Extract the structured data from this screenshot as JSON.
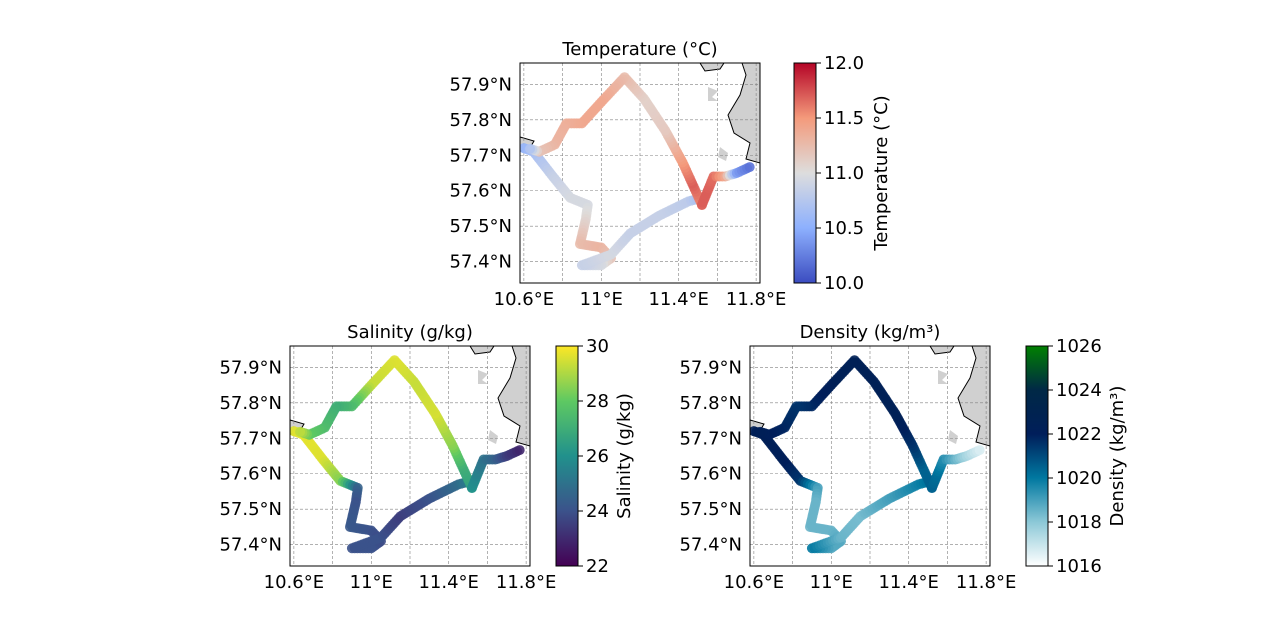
{
  "colors": {
    "land": "#d0d0d0",
    "grid": "#808080",
    "coast": "#000000"
  },
  "chart_data": [
    {
      "type": "scatter",
      "title": "Temperature (°C)",
      "colorbar_label": "Temperature (°C)",
      "colormap": "coolwarm",
      "clim": [
        10.0,
        12.0
      ],
      "colorbar_ticks": [
        "10.0",
        "10.5",
        "11.0",
        "11.5",
        "12.0"
      ],
      "colorbar_tick_values": [
        10.0,
        10.5,
        11.0,
        11.5,
        12.0
      ],
      "xlim": [
        10.58,
        11.82
      ],
      "ylim": [
        57.34,
        57.96
      ],
      "x_ticks": [
        10.6,
        11.0,
        11.4,
        11.8
      ],
      "x_tick_labels": [
        "10.6°E",
        "11°E",
        "11.4°E",
        "11.8°E"
      ],
      "y_ticks": [
        57.4,
        57.5,
        57.6,
        57.7,
        57.8,
        57.9
      ],
      "y_tick_labels": [
        "57.4°N",
        "57.5°N",
        "57.6°N",
        "57.7°N",
        "57.8°N",
        "57.9°N"
      ],
      "grid": true,
      "track": [
        {
          "lon": 10.6,
          "lat": 57.72,
          "v": 10.55
        },
        {
          "lon": 10.65,
          "lat": 57.71,
          "v": 10.65
        },
        {
          "lon": 10.75,
          "lat": 57.64,
          "v": 10.85
        },
        {
          "lon": 10.84,
          "lat": 57.58,
          "v": 10.95
        },
        {
          "lon": 10.93,
          "lat": 57.56,
          "v": 10.95
        },
        {
          "lon": 10.92,
          "lat": 57.52,
          "v": 11.05
        },
        {
          "lon": 10.89,
          "lat": 57.45,
          "v": 11.25
        },
        {
          "lon": 11.0,
          "lat": 57.44,
          "v": 11.3
        },
        {
          "lon": 11.05,
          "lat": 57.41,
          "v": 11.2
        },
        {
          "lon": 11.0,
          "lat": 57.39,
          "v": 10.95
        },
        {
          "lon": 10.9,
          "lat": 57.39,
          "v": 10.85
        },
        {
          "lon": 11.05,
          "lat": 57.42,
          "v": 10.95
        },
        {
          "lon": 11.15,
          "lat": 57.48,
          "v": 10.85
        },
        {
          "lon": 11.3,
          "lat": 57.53,
          "v": 10.85
        },
        {
          "lon": 11.45,
          "lat": 57.57,
          "v": 10.8
        },
        {
          "lon": 11.52,
          "lat": 57.58,
          "v": 10.65
        },
        {
          "lon": 11.52,
          "lat": 57.56,
          "v": 11.55
        },
        {
          "lon": 11.47,
          "lat": 57.62,
          "v": 11.7
        },
        {
          "lon": 11.42,
          "lat": 57.68,
          "v": 11.5
        },
        {
          "lon": 11.33,
          "lat": 57.77,
          "v": 11.15
        },
        {
          "lon": 11.22,
          "lat": 57.86,
          "v": 11.1
        },
        {
          "lon": 11.12,
          "lat": 57.92,
          "v": 11.25
        },
        {
          "lon": 11.0,
          "lat": 57.85,
          "v": 11.4
        },
        {
          "lon": 10.9,
          "lat": 57.79,
          "v": 11.4
        },
        {
          "lon": 10.82,
          "lat": 57.79,
          "v": 11.35
        },
        {
          "lon": 10.76,
          "lat": 57.73,
          "v": 11.3
        },
        {
          "lon": 10.68,
          "lat": 57.71,
          "v": 11.2
        },
        {
          "lon": 10.62,
          "lat": 57.72,
          "v": 10.6
        }
      ],
      "branch": [
        {
          "lon": 11.52,
          "lat": 57.56,
          "v": 11.7
        },
        {
          "lon": 11.55,
          "lat": 57.6,
          "v": 11.7
        },
        {
          "lon": 11.58,
          "lat": 57.64,
          "v": 11.65
        },
        {
          "lon": 11.64,
          "lat": 57.64,
          "v": 11.4
        },
        {
          "lon": 11.7,
          "lat": 57.65,
          "v": 10.4
        },
        {
          "lon": 11.78,
          "lat": 57.67,
          "v": 10.15
        }
      ]
    },
    {
      "type": "scatter",
      "title": "Salinity (g/kg)",
      "colorbar_label": "Salinity (g/kg)",
      "colormap": "viridis",
      "clim": [
        22,
        30
      ],
      "colorbar_ticks": [
        "22",
        "24",
        "26",
        "28",
        "30"
      ],
      "colorbar_tick_values": [
        22,
        24,
        26,
        28,
        30
      ],
      "xlim": [
        10.58,
        11.82
      ],
      "ylim": [
        57.34,
        57.96
      ],
      "x_ticks": [
        10.6,
        11.0,
        11.4,
        11.8
      ],
      "x_tick_labels": [
        "10.6°E",
        "11°E",
        "11.4°E",
        "11.8°E"
      ],
      "y_ticks": [
        57.4,
        57.5,
        57.6,
        57.7,
        57.8,
        57.9
      ],
      "y_tick_labels": [
        "57.4°N",
        "57.5°N",
        "57.6°N",
        "57.7°N",
        "57.8°N",
        "57.9°N"
      ],
      "grid": true,
      "track": [
        {
          "lon": 10.6,
          "lat": 57.72,
          "v": 29.6
        },
        {
          "lon": 10.65,
          "lat": 57.71,
          "v": 29.7
        },
        {
          "lon": 10.75,
          "lat": 57.64,
          "v": 29.6
        },
        {
          "lon": 10.84,
          "lat": 57.58,
          "v": 28.5
        },
        {
          "lon": 10.93,
          "lat": 57.56,
          "v": 24.5
        },
        {
          "lon": 10.92,
          "lat": 57.52,
          "v": 24.0
        },
        {
          "lon": 10.89,
          "lat": 57.45,
          "v": 24.2
        },
        {
          "lon": 11.0,
          "lat": 57.44,
          "v": 24.0
        },
        {
          "lon": 11.05,
          "lat": 57.41,
          "v": 23.8
        },
        {
          "lon": 11.0,
          "lat": 57.39,
          "v": 24.0
        },
        {
          "lon": 10.9,
          "lat": 57.39,
          "v": 24.0
        },
        {
          "lon": 11.05,
          "lat": 57.42,
          "v": 24.0
        },
        {
          "lon": 11.15,
          "lat": 57.48,
          "v": 23.5
        },
        {
          "lon": 11.3,
          "lat": 57.53,
          "v": 24.0
        },
        {
          "lon": 11.45,
          "lat": 57.57,
          "v": 24.8
        },
        {
          "lon": 11.52,
          "lat": 57.58,
          "v": 25.5
        },
        {
          "lon": 11.52,
          "lat": 57.56,
          "v": 26.5
        },
        {
          "lon": 11.47,
          "lat": 57.62,
          "v": 27.0
        },
        {
          "lon": 11.42,
          "lat": 57.68,
          "v": 28.5
        },
        {
          "lon": 11.33,
          "lat": 57.77,
          "v": 29.5
        },
        {
          "lon": 11.22,
          "lat": 57.86,
          "v": 29.3
        },
        {
          "lon": 11.12,
          "lat": 57.92,
          "v": 29.6
        },
        {
          "lon": 11.0,
          "lat": 57.85,
          "v": 29.3
        },
        {
          "lon": 10.9,
          "lat": 57.79,
          "v": 27.5
        },
        {
          "lon": 10.82,
          "lat": 57.79,
          "v": 27.0
        },
        {
          "lon": 10.76,
          "lat": 57.73,
          "v": 27.5
        },
        {
          "lon": 10.68,
          "lat": 57.71,
          "v": 28.0
        },
        {
          "lon": 10.62,
          "lat": 57.72,
          "v": 29.5
        }
      ],
      "branch": [
        {
          "lon": 11.52,
          "lat": 57.56,
          "v": 26.0
        },
        {
          "lon": 11.55,
          "lat": 57.6,
          "v": 25.5
        },
        {
          "lon": 11.58,
          "lat": 57.64,
          "v": 25.0
        },
        {
          "lon": 11.64,
          "lat": 57.64,
          "v": 24.5
        },
        {
          "lon": 11.7,
          "lat": 57.65,
          "v": 23.5
        },
        {
          "lon": 11.78,
          "lat": 57.67,
          "v": 22.8
        }
      ]
    },
    {
      "type": "scatter",
      "title": "Density (kg/m³)",
      "colorbar_label": "Density (kg/m³)",
      "colormap": "ocean",
      "clim": [
        1016,
        1026
      ],
      "colorbar_ticks": [
        "1016",
        "1018",
        "1020",
        "1022",
        "1024",
        "1026"
      ],
      "colorbar_tick_values": [
        1016,
        1018,
        1020,
        1022,
        1024,
        1026
      ],
      "xlim": [
        10.58,
        11.82
      ],
      "ylim": [
        57.34,
        57.96
      ],
      "x_ticks": [
        10.6,
        11.0,
        11.4,
        11.8
      ],
      "x_tick_labels": [
        "10.6°E",
        "11°E",
        "11.4°E",
        "11.8°E"
      ],
      "y_ticks": [
        57.4,
        57.5,
        57.6,
        57.7,
        57.8,
        57.9
      ],
      "y_tick_labels": [
        "57.4°N",
        "57.5°N",
        "57.6°N",
        "57.7°N",
        "57.8°N",
        "57.9°N"
      ],
      "grid": true,
      "track": [
        {
          "lon": 10.6,
          "lat": 57.72,
          "v": 1022.3
        },
        {
          "lon": 10.65,
          "lat": 57.71,
          "v": 1022.3
        },
        {
          "lon": 10.75,
          "lat": 57.64,
          "v": 1022.2
        },
        {
          "lon": 10.84,
          "lat": 57.58,
          "v": 1021.5
        },
        {
          "lon": 10.93,
          "lat": 57.56,
          "v": 1019.0
        },
        {
          "lon": 10.92,
          "lat": 57.52,
          "v": 1018.5
        },
        {
          "lon": 10.89,
          "lat": 57.45,
          "v": 1018.5
        },
        {
          "lon": 11.0,
          "lat": 57.44,
          "v": 1018.5
        },
        {
          "lon": 11.05,
          "lat": 57.41,
          "v": 1018.8
        },
        {
          "lon": 11.0,
          "lat": 57.39,
          "v": 1018.8
        },
        {
          "lon": 10.9,
          "lat": 57.39,
          "v": 1020.0
        },
        {
          "lon": 11.05,
          "lat": 57.42,
          "v": 1018.5
        },
        {
          "lon": 11.15,
          "lat": 57.48,
          "v": 1018.3
        },
        {
          "lon": 11.3,
          "lat": 57.53,
          "v": 1019.0
        },
        {
          "lon": 11.45,
          "lat": 57.57,
          "v": 1019.8
        },
        {
          "lon": 11.52,
          "lat": 57.58,
          "v": 1020.2
        },
        {
          "lon": 11.52,
          "lat": 57.56,
          "v": 1020.5
        },
        {
          "lon": 11.47,
          "lat": 57.62,
          "v": 1020.5
        },
        {
          "lon": 11.42,
          "lat": 57.68,
          "v": 1021.5
        },
        {
          "lon": 11.33,
          "lat": 57.77,
          "v": 1022.4
        },
        {
          "lon": 11.22,
          "lat": 57.86,
          "v": 1022.4
        },
        {
          "lon": 11.12,
          "lat": 57.92,
          "v": 1022.4
        },
        {
          "lon": 11.0,
          "lat": 57.85,
          "v": 1022.3
        },
        {
          "lon": 10.9,
          "lat": 57.79,
          "v": 1021.8
        },
        {
          "lon": 10.82,
          "lat": 57.79,
          "v": 1021.5
        },
        {
          "lon": 10.76,
          "lat": 57.73,
          "v": 1021.8
        },
        {
          "lon": 10.68,
          "lat": 57.71,
          "v": 1022.0
        },
        {
          "lon": 10.62,
          "lat": 57.72,
          "v": 1022.3
        }
      ],
      "branch": [
        {
          "lon": 11.52,
          "lat": 57.56,
          "v": 1020.5
        },
        {
          "lon": 11.55,
          "lat": 57.6,
          "v": 1020.2
        },
        {
          "lon": 11.58,
          "lat": 57.64,
          "v": 1019.5
        },
        {
          "lon": 11.64,
          "lat": 57.64,
          "v": 1018.5
        },
        {
          "lon": 11.7,
          "lat": 57.65,
          "v": 1017.5
        },
        {
          "lon": 11.78,
          "lat": 57.67,
          "v": 1016.5
        }
      ]
    }
  ]
}
